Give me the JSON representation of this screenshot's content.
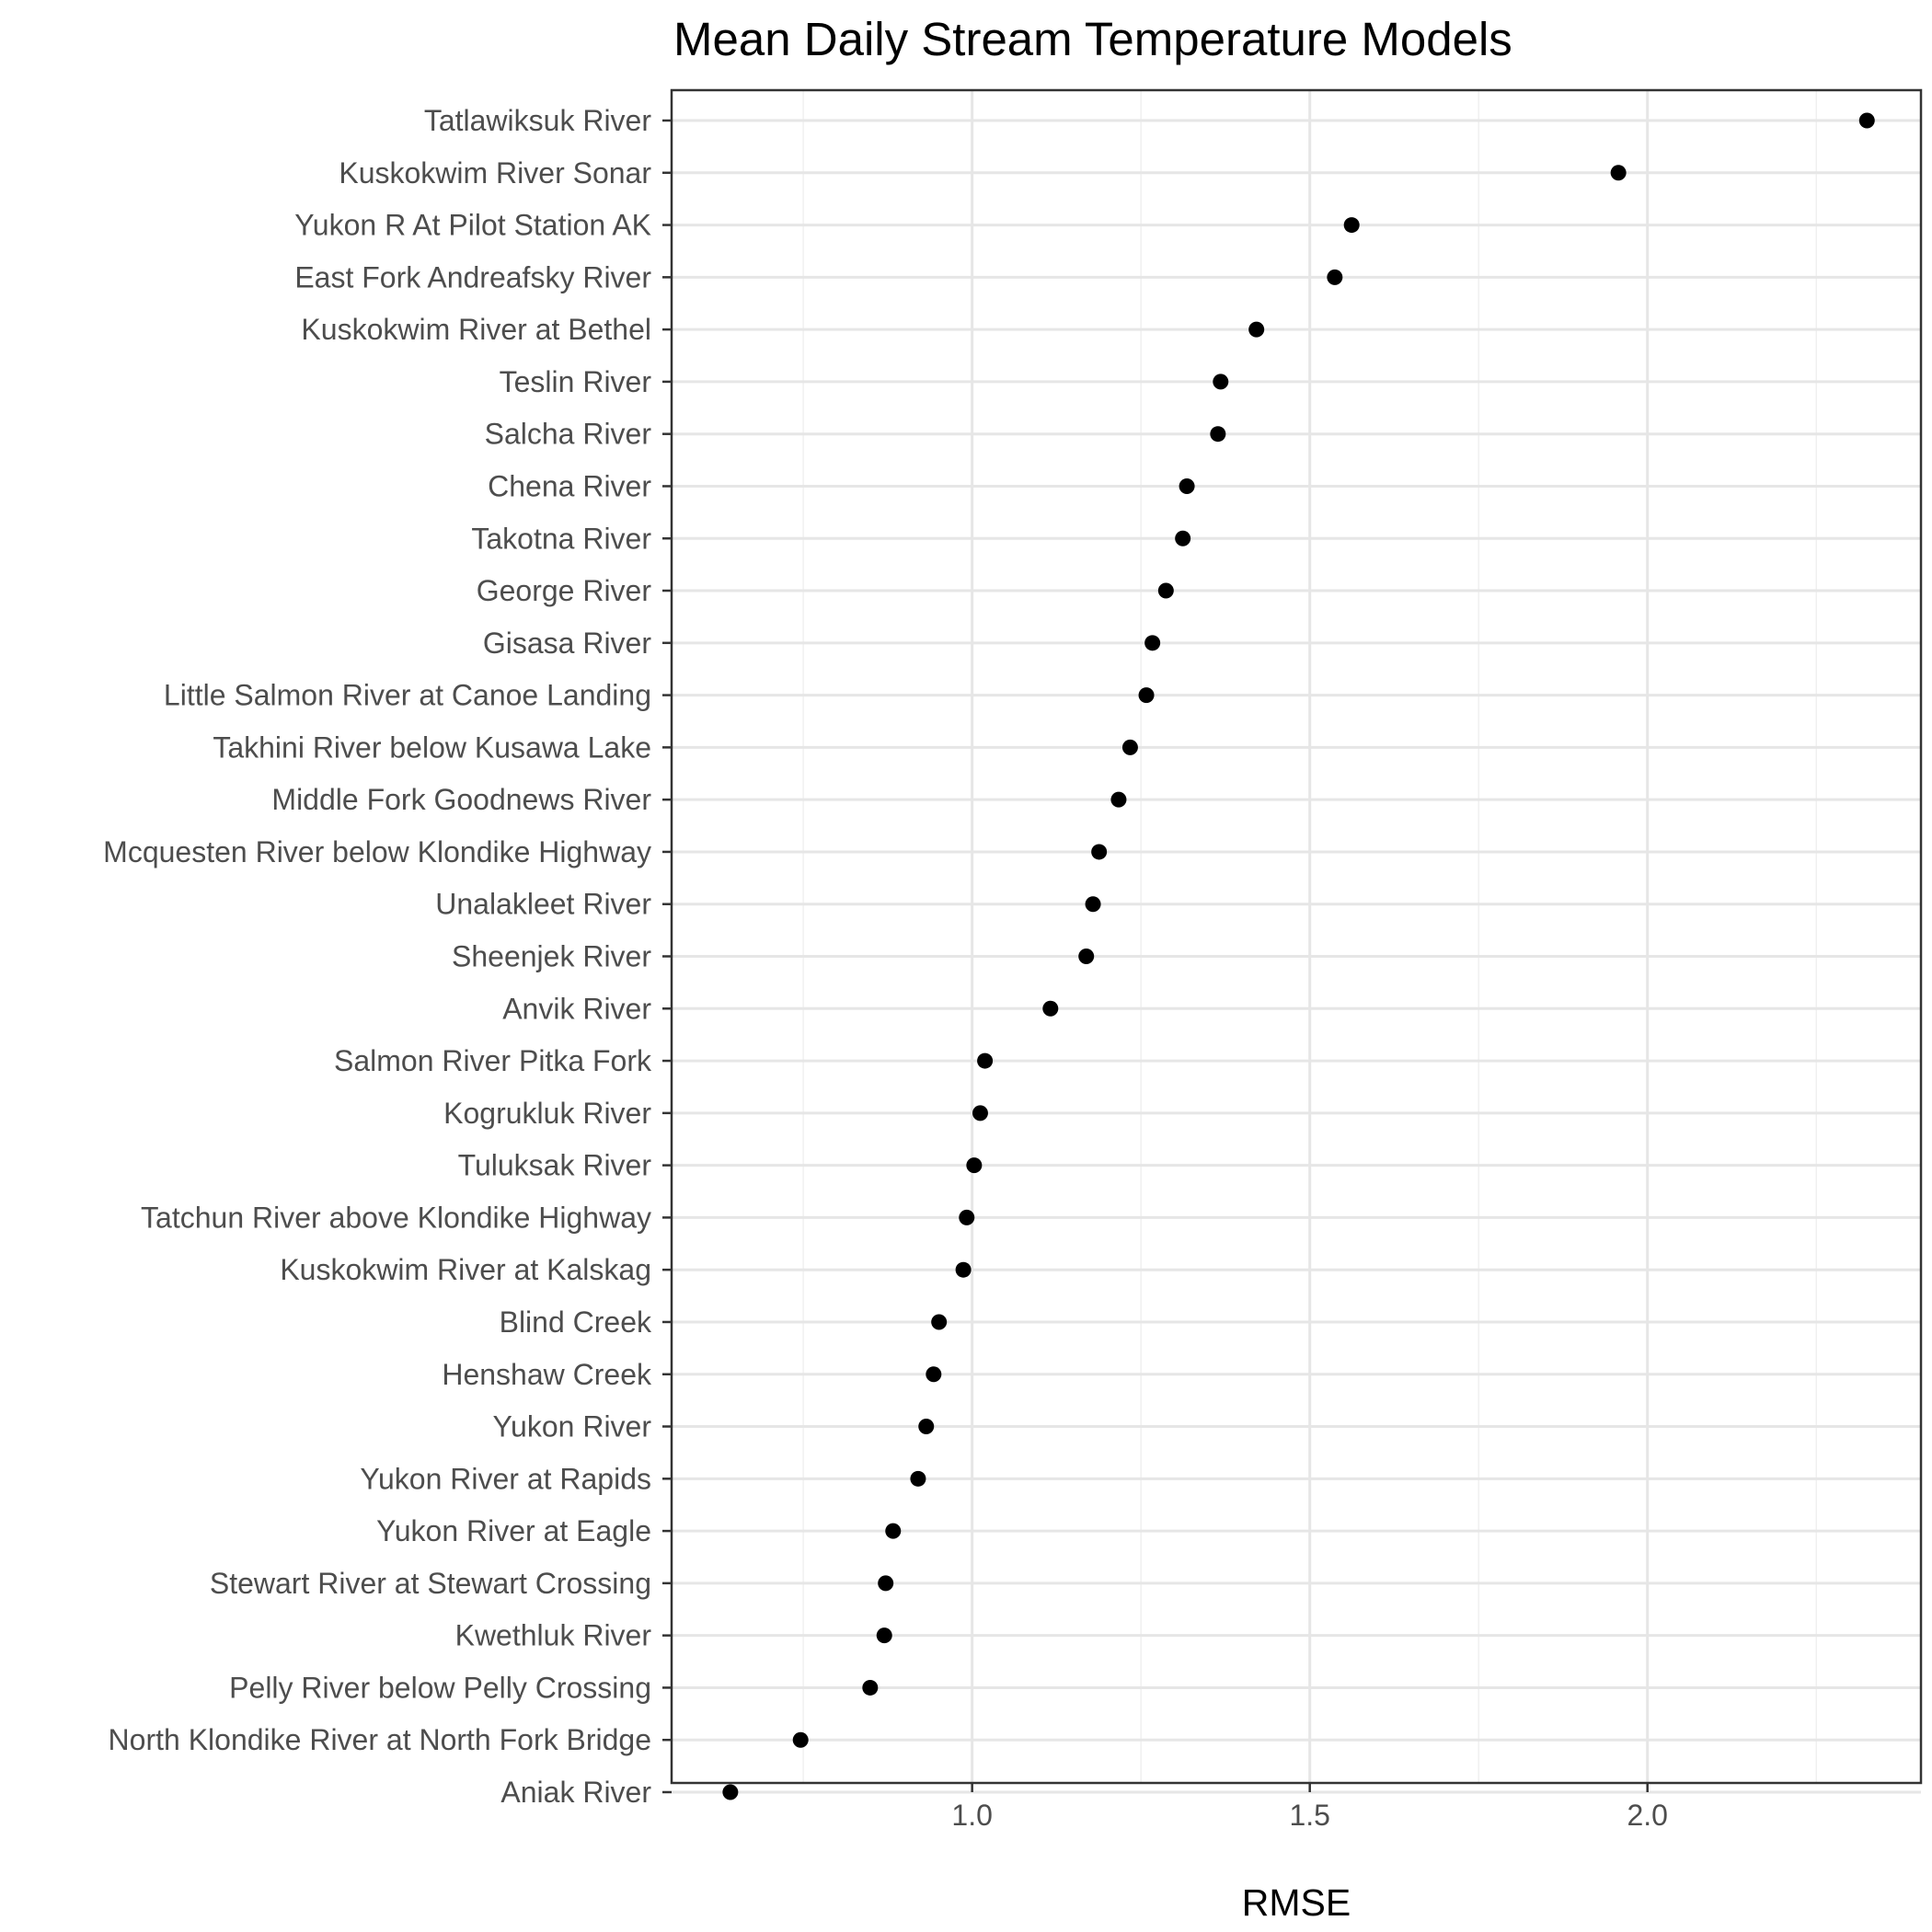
{
  "chart_data": {
    "type": "scatter",
    "title": "Mean Daily Stream Temperature Models",
    "xlabel": "RMSE",
    "ylabel": "",
    "xlim": [
      0.555,
      2.405
    ],
    "x_ticks": [
      {
        "value": 1.0,
        "label": "1.0"
      },
      {
        "value": 1.5,
        "label": "1.5"
      },
      {
        "value": 2.0,
        "label": "2.0"
      }
    ],
    "x_minor_ticks": [
      0.75,
      1.25,
      1.75,
      2.25
    ],
    "grid": true,
    "point_color": "#000000",
    "categories": [
      "Tatlawiksuk River",
      "Kuskokwim River Sonar",
      "Yukon R At Pilot Station AK",
      "East Fork Andreafsky River",
      "Kuskokwim River at Bethel",
      "Teslin River",
      "Salcha River",
      "Chena River",
      "Takotna River",
      "George River",
      "Gisasa River",
      "Little Salmon River at Canoe Landing",
      "Takhini River below Kusawa Lake",
      "Middle Fork Goodnews River",
      "Mcquesten River below Klondike Highway",
      "Unalakleet River",
      "Sheenjek River",
      "Anvik River",
      "Salmon River Pitka Fork",
      "Kogrukluk River",
      "Tuluksak River",
      "Tatchun River above Klondike Highway",
      "Kuskokwim River at Kalskag",
      "Blind Creek",
      "Henshaw Creek",
      "Yukon River",
      "Yukon River at Rapids",
      "Yukon River at Eagle",
      "Stewart River at Stewart Crossing",
      "Kwethluk River",
      "Pelly River below Pelly Crossing",
      "North Klondike River at North Fork Bridge",
      "Aniak River"
    ],
    "values": [
      2.325,
      1.957,
      1.562,
      1.537,
      1.421,
      1.368,
      1.364,
      1.318,
      1.312,
      1.287,
      1.267,
      1.258,
      1.234,
      1.217,
      1.188,
      1.179,
      1.169,
      1.116,
      1.019,
      1.012,
      1.003,
      0.992,
      0.987,
      0.951,
      0.943,
      0.932,
      0.92,
      0.883,
      0.872,
      0.87,
      0.849,
      0.746,
      0.642
    ]
  }
}
